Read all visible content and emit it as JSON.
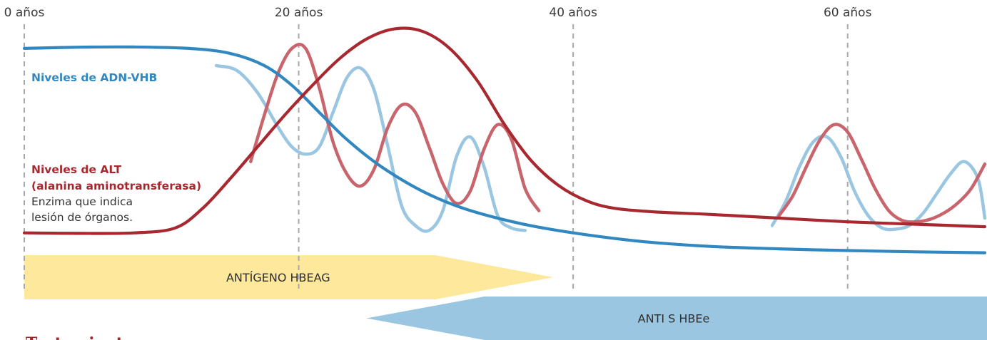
{
  "chart_data": {
    "type": "line",
    "x_axis": {
      "unit": "años",
      "range": [
        0,
        70
      ],
      "ticks": [
        {
          "value": 0,
          "label": "0 años"
        },
        {
          "value": 20,
          "label": "20 años"
        },
        {
          "value": 40,
          "label": "40 años"
        },
        {
          "value": 60,
          "label": "60 años"
        }
      ],
      "grid": true
    },
    "y_axis": {
      "range": [
        0,
        100
      ],
      "ticks": []
    },
    "series": [
      {
        "name": "Niveles de ADN-VHB",
        "color": "#3187c0",
        "points": [
          [
            0,
            89
          ],
          [
            4,
            89.5
          ],
          [
            8,
            89.6
          ],
          [
            12,
            89
          ],
          [
            15,
            87
          ],
          [
            17.5,
            82
          ],
          [
            19.5,
            74
          ],
          [
            21.5,
            63
          ],
          [
            23.5,
            52
          ],
          [
            26,
            41
          ],
          [
            29,
            31
          ],
          [
            32,
            24
          ],
          [
            36,
            18
          ],
          [
            40,
            14
          ],
          [
            45,
            10.5
          ],
          [
            50,
            8.5
          ],
          [
            55,
            7.5
          ],
          [
            60,
            6.8
          ],
          [
            65,
            6.3
          ],
          [
            70,
            5.9
          ]
        ]
      },
      {
        "name": "Niveles de ALT (alanina aminotransferasa)",
        "color": "#a8282f",
        "points": [
          [
            0,
            14
          ],
          [
            4,
            13.8
          ],
          [
            8,
            14
          ],
          [
            11,
            16
          ],
          [
            13,
            24
          ],
          [
            15,
            36
          ],
          [
            17,
            49
          ],
          [
            19,
            62
          ],
          [
            21,
            74
          ],
          [
            23,
            85
          ],
          [
            25,
            93
          ],
          [
            27,
            97
          ],
          [
            29,
            96
          ],
          [
            31,
            89
          ],
          [
            33,
            76
          ],
          [
            35,
            58
          ],
          [
            37,
            43
          ],
          [
            39,
            33
          ],
          [
            41,
            27
          ],
          [
            43,
            24
          ],
          [
            46,
            22.5
          ],
          [
            50,
            21.5
          ],
          [
            55,
            20
          ],
          [
            60,
            18.5
          ],
          [
            65,
            17.5
          ],
          [
            70,
            16.5
          ]
        ]
      },
      {
        "name": "",
        "color": "#9ac6e2",
        "style": "fluctuation",
        "segments": [
          [
            [
              14,
              82
            ],
            [
              15.5,
              80
            ],
            [
              17,
              71
            ],
            [
              18.5,
              57
            ],
            [
              19.5,
              49
            ],
            [
              20.5,
              46
            ],
            [
              21.5,
              49
            ],
            [
              22.5,
              63
            ],
            [
              23.5,
              77
            ],
            [
              24.5,
              81
            ],
            [
              25.5,
              72
            ],
            [
              26.5,
              49
            ],
            [
              27.5,
              25
            ],
            [
              28.5,
              17
            ],
            [
              29.5,
              15
            ],
            [
              30.5,
              23
            ],
            [
              31.5,
              45
            ],
            [
              32.5,
              53
            ],
            [
              33.5,
              41
            ],
            [
              34.5,
              21
            ],
            [
              35.5,
              16
            ],
            [
              36.5,
              15
            ]
          ],
          [
            [
              54.5,
              17
            ],
            [
              55.5,
              27
            ],
            [
              56.5,
              41
            ],
            [
              57.5,
              51
            ],
            [
              58.5,
              53
            ],
            [
              59.5,
              45
            ],
            [
              60.5,
              31
            ],
            [
              61.5,
              21
            ],
            [
              62.5,
              16
            ],
            [
              63.5,
              15.5
            ],
            [
              64.5,
              17
            ],
            [
              65.5,
              22
            ],
            [
              66.5,
              30
            ],
            [
              67.5,
              38
            ],
            [
              68.5,
              43
            ],
            [
              69.5,
              36
            ],
            [
              70,
              20
            ]
          ]
        ]
      },
      {
        "name": "",
        "color": "#c8656c",
        "style": "fluctuation",
        "segments": [
          [
            [
              16.5,
              43
            ],
            [
              17.5,
              62
            ],
            [
              18.5,
              79
            ],
            [
              19.5,
              89
            ],
            [
              20.5,
              89
            ],
            [
              21.5,
              73
            ],
            [
              22.5,
              51
            ],
            [
              23.5,
              38
            ],
            [
              24.5,
              33
            ],
            [
              25.5,
              40
            ],
            [
              26.5,
              57
            ],
            [
              27.5,
              66
            ],
            [
              28.5,
              63
            ],
            [
              29.5,
              49
            ],
            [
              30.5,
              34
            ],
            [
              31.5,
              26
            ],
            [
              32.5,
              31
            ],
            [
              33.5,
              48
            ],
            [
              34.5,
              58
            ],
            [
              35.5,
              52
            ],
            [
              36.5,
              32
            ],
            [
              37.5,
              23
            ]
          ],
          [
            [
              55,
              21
            ],
            [
              56,
              29
            ],
            [
              57,
              41
            ],
            [
              58,
              52
            ],
            [
              59,
              58
            ],
            [
              60,
              55
            ],
            [
              61,
              44
            ],
            [
              62,
              32
            ],
            [
              63,
              23
            ],
            [
              64,
              19
            ],
            [
              65,
              18.5
            ],
            [
              66,
              19.5
            ],
            [
              67,
              22
            ],
            [
              68,
              26
            ],
            [
              69,
              32
            ],
            [
              70,
              42
            ]
          ]
        ]
      }
    ],
    "bands": [
      {
        "label": "ANTÍGENO HBEAG",
        "x_start": 0,
        "x_end": 38.5,
        "color": "#fde89c",
        "direction": "right"
      },
      {
        "label": "ANTI S HBEe",
        "x_start": 25,
        "x_end": 70,
        "color": "#9ac6e2",
        "direction": "left"
      }
    ],
    "annotations": [
      {
        "text": "Niveles de ADN-VHB",
        "color": "#3187c0"
      },
      {
        "text": "Niveles de ALT",
        "color": "#a8282f"
      },
      {
        "text": "(alanina aminotransferasa)",
        "color": "#a8282f"
      },
      {
        "text": "Enzima que indica",
        "color": "#333333"
      },
      {
        "text": "lesión de órganos.",
        "color": "#333333"
      }
    ],
    "partial_heading": {
      "text": "Tratamiento",
      "color": "#b01e26"
    }
  }
}
